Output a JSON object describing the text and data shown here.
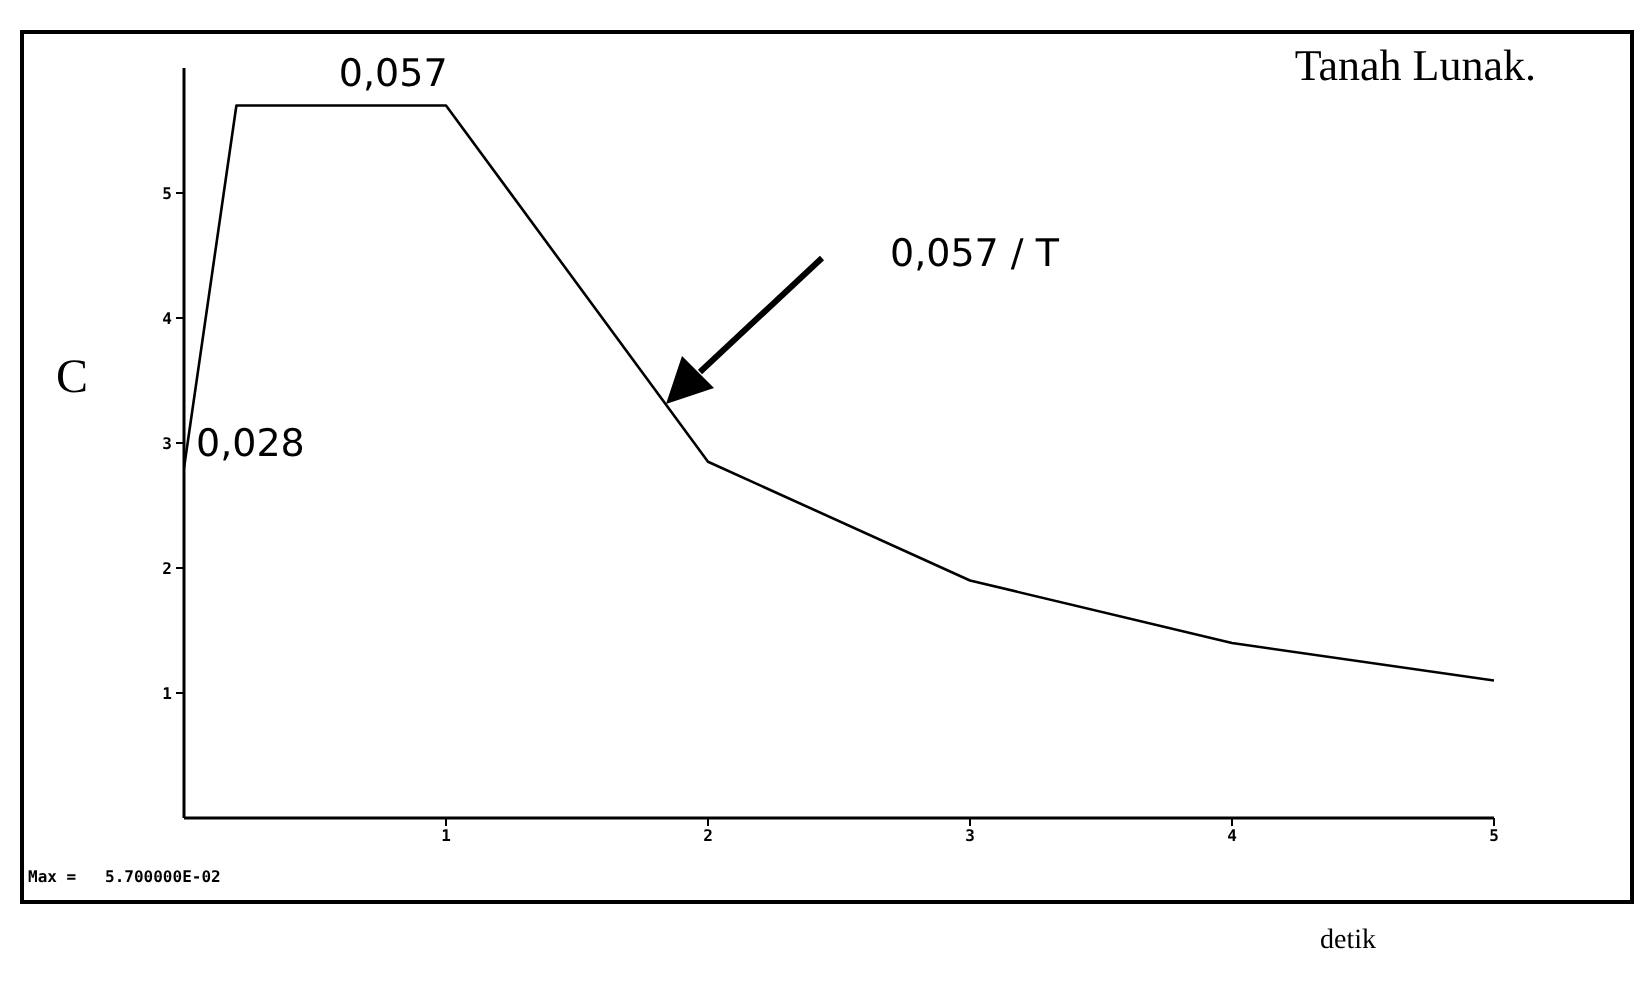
{
  "chart_data": {
    "type": "line",
    "title": "Tanah Lunak.",
    "xlabel": "detik",
    "ylabel": "C",
    "x": [
      0,
      0.2,
      1,
      2,
      3,
      4,
      5
    ],
    "values": [
      2.8,
      5.7,
      5.7,
      2.85,
      1.9,
      1.4,
      1.1
    ],
    "color": "#000000",
    "marker": "none",
    "line_style": "solid",
    "xlim": [
      0,
      5
    ],
    "xticks": [
      1,
      2,
      3,
      4,
      5
    ],
    "ylim": [
      0,
      6
    ],
    "yticks": [
      1,
      2,
      3,
      4,
      5
    ],
    "annotations": [
      {
        "text": "0,057",
        "x": 0.6,
        "y": 5.7
      },
      {
        "text": "0,028",
        "x": 0,
        "y": 2.8
      },
      "0,057 / T",
      "Max =   5.700000E-02"
    ]
  }
}
